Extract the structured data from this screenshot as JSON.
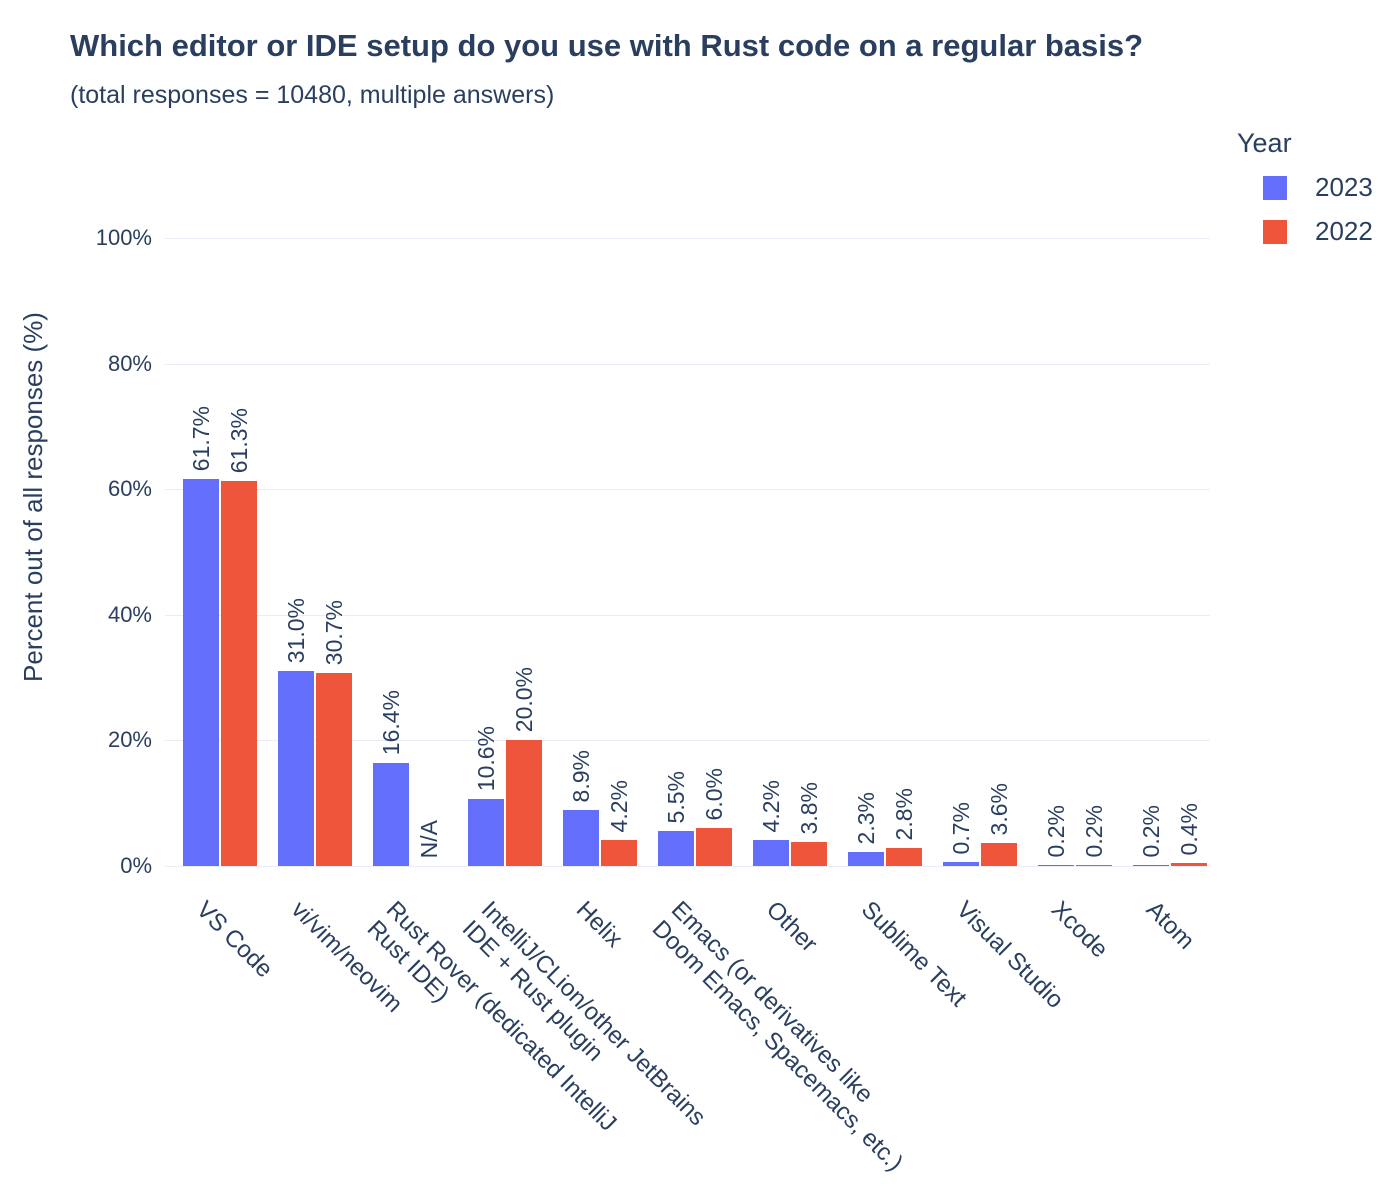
{
  "title": "Which editor or IDE setup do you use with Rust code on a regular basis?",
  "subtitle": "(total responses = 10480, multiple answers)",
  "colors": {
    "text": "#2a3f5f",
    "gridline": "#e8edf7",
    "background": "#ffffff",
    "bar_2023": "#636efa",
    "bar_2022": "#ef553b"
  },
  "legend": {
    "title": "Year",
    "position": "top-right",
    "items": [
      {
        "label": "2023",
        "color": "#636efa"
      },
      {
        "label": "2022",
        "color": "#ef553b"
      }
    ]
  },
  "yaxis": {
    "title": "Percent out of all responses (%)"
  },
  "chart_data": {
    "type": "bar",
    "title": "Which editor or IDE setup do you use with Rust code on a regular basis?",
    "subtitle": "(total responses = 10480, multiple answers)",
    "xlabel": "",
    "ylabel": "Percent out of all responses (%)",
    "ylim": [
      0,
      100
    ],
    "grid": true,
    "legend_title": "Year",
    "legend_position": "top-right",
    "ytick_values": [
      0,
      20,
      40,
      60,
      80,
      100
    ],
    "ytick_labels": [
      "0%",
      "20%",
      "40%",
      "60%",
      "80%",
      "100%"
    ],
    "categories": [
      "VS Code",
      "vi/vim/neovim",
      "Rust Rover (dedicated IntelliJ\nRust IDE)",
      "IntelliJ/CLion/other JetBrains\nIDE + Rust plugin",
      "Helix",
      "Emacs (or derivatives like\nDoom Emacs, Spacemacs, etc.)",
      "Other",
      "Sublime Text",
      "Visual Studio",
      "Xcode",
      "Atom"
    ],
    "series": [
      {
        "name": "2023",
        "color": "#636efa",
        "values": [
          61.7,
          31.0,
          16.4,
          10.6,
          8.9,
          5.5,
          4.2,
          2.3,
          0.7,
          0.2,
          0.2
        ],
        "labels": [
          "61.7%",
          "31.0%",
          "16.4%",
          "10.6%",
          "8.9%",
          "5.5%",
          "4.2%",
          "2.3%",
          "0.7%",
          "0.2%",
          "0.2%"
        ]
      },
      {
        "name": "2022",
        "color": "#ef553b",
        "values": [
          61.3,
          30.7,
          null,
          20.0,
          4.2,
          6.0,
          3.8,
          2.8,
          3.6,
          0.2,
          0.4
        ],
        "labels": [
          "61.3%",
          "30.7%",
          "N/A",
          "20.0%",
          "4.2%",
          "6.0%",
          "3.8%",
          "2.8%",
          "3.6%",
          "0.2%",
          "0.4%"
        ]
      }
    ]
  }
}
